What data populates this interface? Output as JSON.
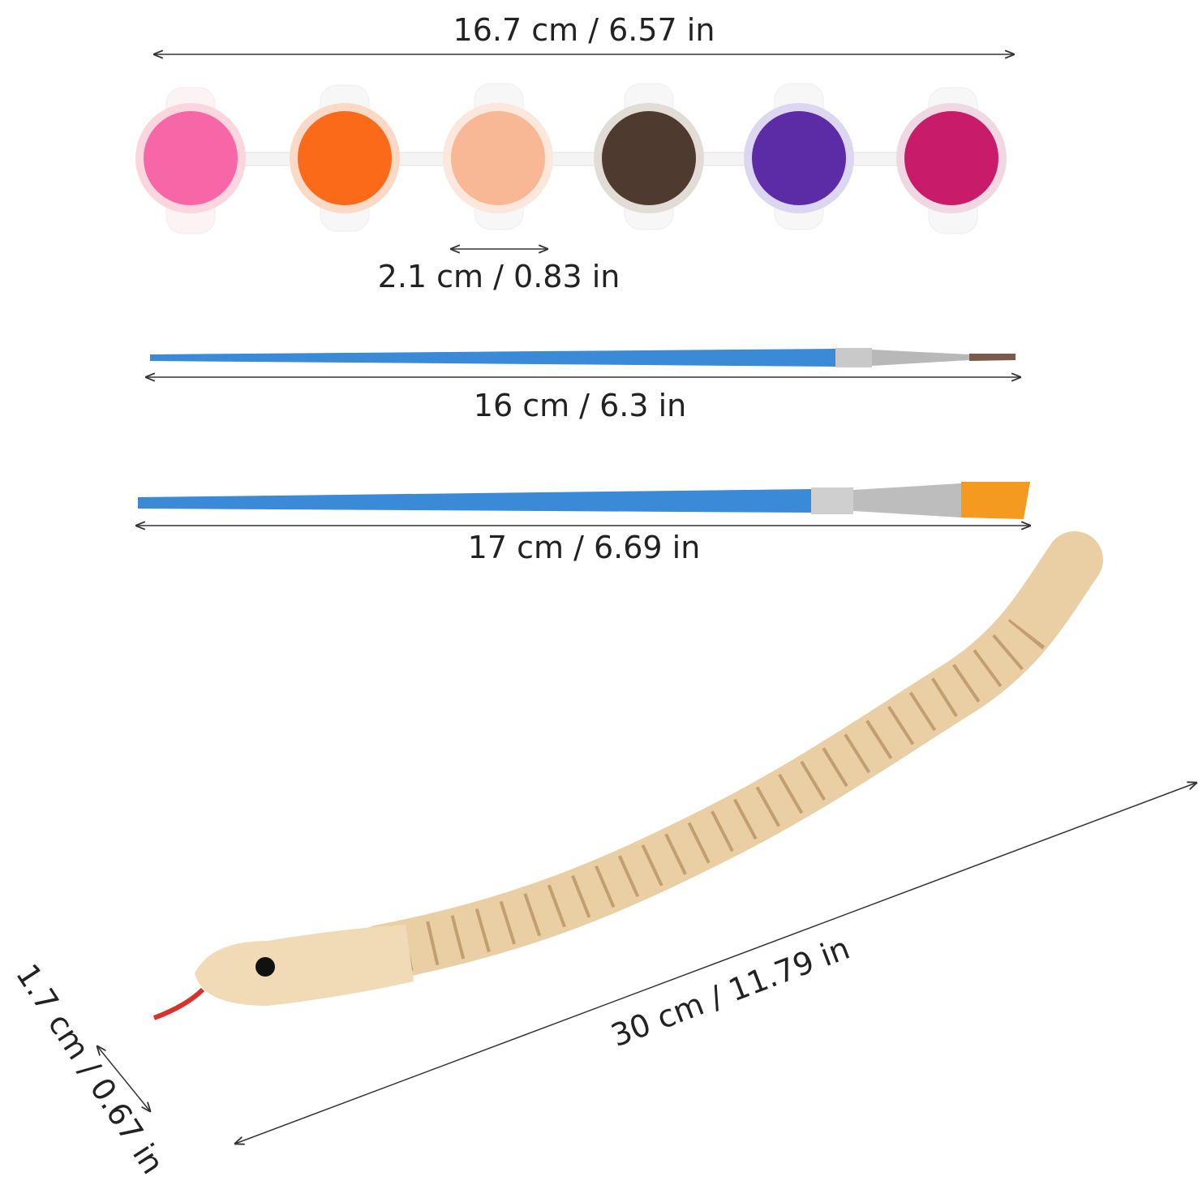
{
  "labels": [
    "16.7 cm / 6.57 in",
    "2.1 cm / 0.83 in",
    "16 cm / 6.3 in",
    "17 cm / 6.69 in",
    "30 cm / 11.79 in",
    "1.7 cm / 0.67 in"
  ]
}
